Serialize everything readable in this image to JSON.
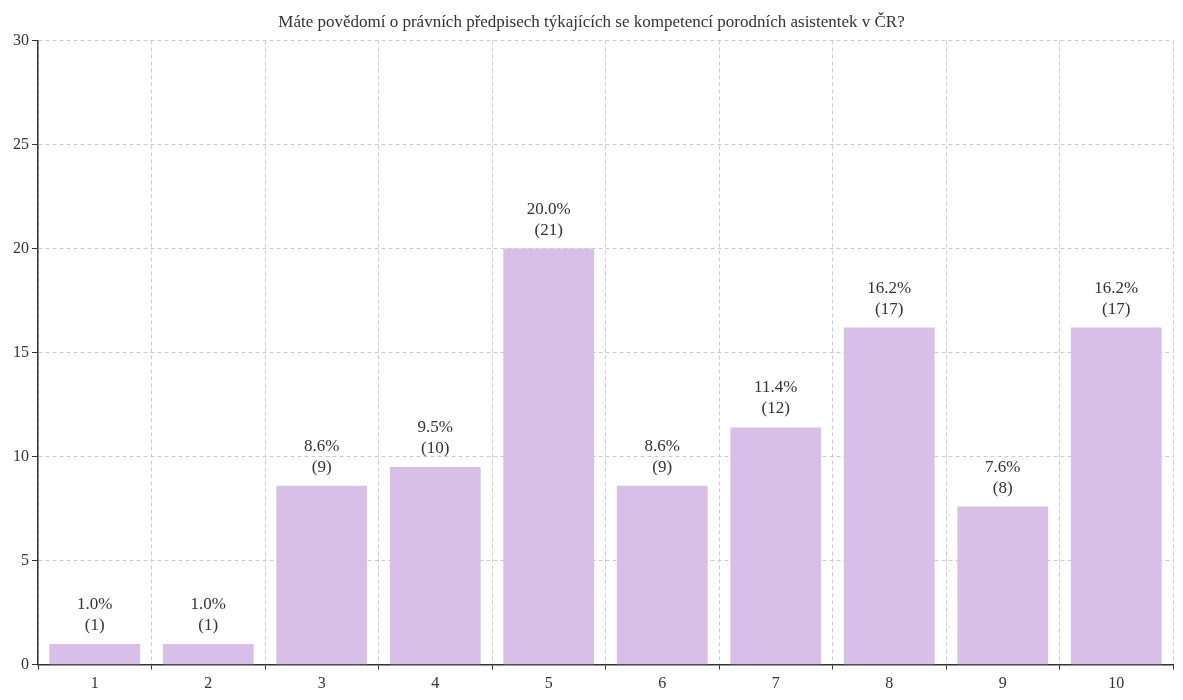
{
  "chart_data": {
    "type": "bar",
    "title": "Máte povědomí o právních předpisech týkajících se kompetencí porodních asistentek v ČR?",
    "categories": [
      "1",
      "2",
      "3",
      "4",
      "5",
      "6",
      "7",
      "8",
      "9",
      "10"
    ],
    "values": [
      1.0,
      1.0,
      8.6,
      9.5,
      20.0,
      8.6,
      11.4,
      16.2,
      7.6,
      16.2
    ],
    "value_labels": [
      "1.0%\n(1)",
      "1.0%\n(1)",
      "8.6%\n(9)",
      "9.5%\n(10)",
      "20.0%\n(21)",
      "8.6%\n(9)",
      "11.4%\n(12)",
      "16.2%\n(17)",
      "7.6%\n(8)",
      "16.2%\n(17)"
    ],
    "color": "#d8bfe8",
    "ylim": [
      0,
      30
    ],
    "yticks": [
      0,
      5,
      10,
      15,
      20,
      25,
      30
    ],
    "grid": true
  }
}
